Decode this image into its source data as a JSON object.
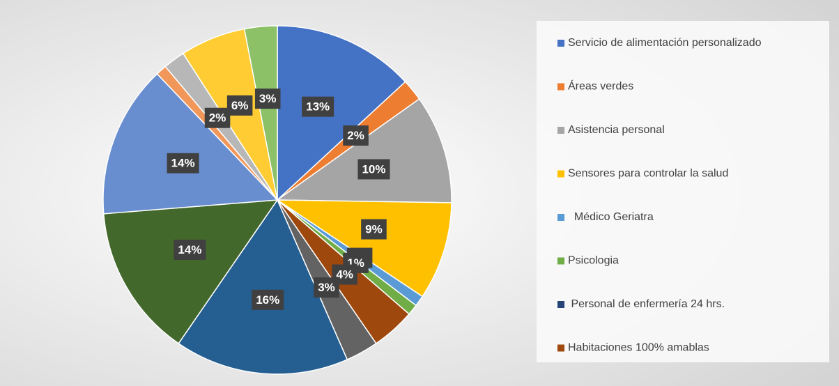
{
  "chart_data": {
    "type": "pie",
    "categories": [
      "Servicio de alimentación personalizado",
      "Áreas verdes",
      "Asistencia personal",
      "Sensores para controlar la salud",
      "  Médico Geriatra",
      "Psicologia",
      " Personal de enfermería 24 hrs.",
      "Habitaciones 100% amablas",
      null,
      null,
      null,
      null,
      null,
      null,
      null,
      null
    ],
    "values": [
      13,
      2,
      10,
      9,
      1,
      1,
      0,
      4,
      3,
      16,
      14,
      14,
      1,
      2,
      6,
      3
    ],
    "value_labels": [
      "13%",
      "2%",
      "10%",
      "9%",
      "1%",
      "1%",
      null,
      "4%",
      "3%",
      "16%",
      "14%",
      "14%",
      null,
      "2%",
      "6%",
      "3%"
    ],
    "colors": [
      "#4472c4",
      "#ed7d31",
      "#a5a5a5",
      "#ffc000",
      "#5b9bd5",
      "#70ad47",
      "#264478",
      "#9e480e",
      "#636363",
      "#255e91",
      "#43682b",
      "#698ed0",
      "#f1975a",
      "#b7b7b7",
      "#ffcd33",
      "#8cc168"
    ],
    "legend": "right"
  }
}
